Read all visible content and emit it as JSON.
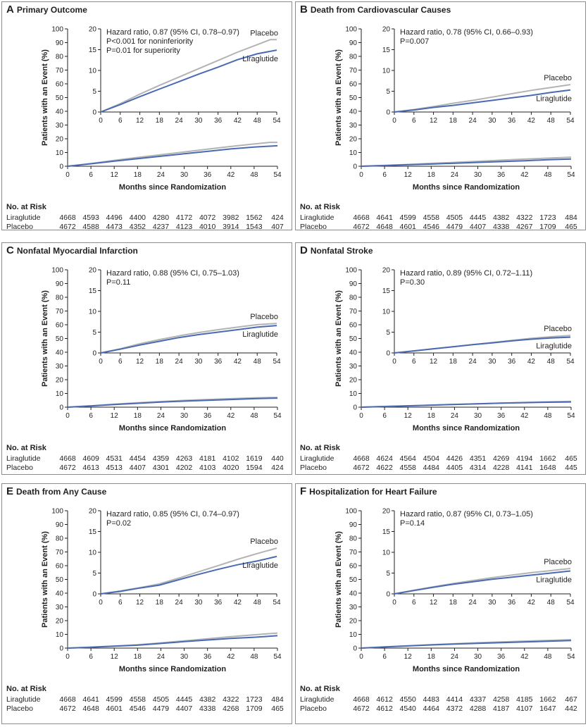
{
  "figure": {
    "panels": [
      {
        "letter": "A",
        "title": "Primary Outcome",
        "hr_lines": [
          "Hazard ratio, 0.87 (95% CI, 0.78–0.97)",
          "P<0.001 for noninferiority",
          "P=0.01 for superiority"
        ],
        "chart_data": {
          "type": "line",
          "title": "Primary Outcome",
          "xlabel": "Months since Randomization",
          "ylabel": "Patients with an Event (%)",
          "xlim": [
            0,
            54
          ],
          "ylim": [
            0,
            100
          ],
          "inset_ylim": [
            0,
            20
          ],
          "xticks": [
            0,
            6,
            12,
            18,
            24,
            30,
            36,
            42,
            48,
            54
          ],
          "yticks": [
            0,
            10,
            20,
            30,
            40,
            50,
            60,
            70,
            80,
            90,
            100
          ],
          "inset_yticks": [
            0,
            5,
            10,
            15,
            20
          ],
          "series": [
            {
              "name": "Placebo",
              "color": "#b3b3b5",
              "x": [
                0,
                6,
                12,
                18,
                24,
                30,
                36,
                42,
                48,
                52,
                54
              ],
              "y": [
                0,
                2.0,
                4.3,
                6.4,
                8.4,
                10.4,
                12.4,
                14.4,
                16.2,
                17.4,
                17.4
              ]
            },
            {
              "name": "Liraglutide",
              "color": "#4a6ab3",
              "x": [
                0,
                6,
                12,
                18,
                24,
                30,
                36,
                42,
                48,
                54
              ],
              "y": [
                0,
                1.8,
                3.7,
                5.5,
                7.3,
                9.1,
                10.8,
                12.6,
                14.0,
                14.9
              ]
            }
          ]
        },
        "risk": {
          "header": "No. at Risk",
          "rows": [
            {
              "label": "Liraglutide",
              "values": [
                "4668",
                "4593",
                "4496",
                "4400",
                "4280",
                "4172",
                "4072",
                "3982",
                "1562",
                "424"
              ]
            },
            {
              "label": "Placebo",
              "values": [
                "4672",
                "4588",
                "4473",
                "4352",
                "4237",
                "4123",
                "4010",
                "3914",
                "1543",
                "407"
              ]
            }
          ]
        }
      },
      {
        "letter": "B",
        "title": "Death from Cardiovascular Causes",
        "hr_lines": [
          "Hazard ratio, 0.78 (95% CI, 0.66–0.93)",
          "P=0.007"
        ],
        "chart_data": {
          "type": "line",
          "title": "Death from Cardiovascular Causes",
          "xlabel": "Months since Randomization",
          "ylabel": "Patients with an Event (%)",
          "xlim": [
            0,
            54
          ],
          "ylim": [
            0,
            100
          ],
          "inset_ylim": [
            0,
            20
          ],
          "xticks": [
            0,
            6,
            12,
            18,
            24,
            30,
            36,
            42,
            48,
            54
          ],
          "yticks": [
            0,
            10,
            20,
            30,
            40,
            50,
            60,
            70,
            80,
            90,
            100
          ],
          "inset_yticks": [
            0,
            5,
            10,
            15,
            20
          ],
          "series": [
            {
              "name": "Placebo",
              "color": "#b3b3b5",
              "x": [
                0,
                6,
                12,
                18,
                24,
                30,
                36,
                42,
                48,
                54
              ],
              "y": [
                0,
                0.6,
                1.3,
                2.1,
                2.8,
                3.6,
                4.4,
                5.2,
                5.9,
                6.6
              ]
            },
            {
              "name": "Liraglutide",
              "color": "#4a6ab3",
              "x": [
                0,
                6,
                12,
                18,
                24,
                30,
                36,
                42,
                48,
                54
              ],
              "y": [
                0,
                0.5,
                1.1,
                1.6,
                2.2,
                2.8,
                3.4,
                4.0,
                4.7,
                5.3
              ]
            }
          ]
        },
        "risk": {
          "header": "No. at Risk",
          "rows": [
            {
              "label": "Liraglutide",
              "values": [
                "4668",
                "4641",
                "4599",
                "4558",
                "4505",
                "4445",
                "4382",
                "4322",
                "1723",
                "484"
              ]
            },
            {
              "label": "Placebo",
              "values": [
                "4672",
                "4648",
                "4601",
                "4546",
                "4479",
                "4407",
                "4338",
                "4267",
                "1709",
                "465"
              ]
            }
          ]
        }
      },
      {
        "letter": "C",
        "title": "Nonfatal Myocardial Infarction",
        "hr_lines": [
          "Hazard ratio, 0.88 (95% CI, 0.75–1.03)",
          "P=0.11"
        ],
        "chart_data": {
          "type": "line",
          "title": "Nonfatal Myocardial Infarction",
          "xlabel": "Months since Randomization",
          "ylabel": "Patients with an Event (%)",
          "xlim": [
            0,
            54
          ],
          "ylim": [
            0,
            100
          ],
          "inset_ylim": [
            0,
            20
          ],
          "xticks": [
            0,
            6,
            12,
            18,
            24,
            30,
            36,
            42,
            48,
            54
          ],
          "yticks": [
            0,
            10,
            20,
            30,
            40,
            50,
            60,
            70,
            80,
            90,
            100
          ],
          "inset_yticks": [
            0,
            5,
            10,
            15,
            20
          ],
          "series": [
            {
              "name": "Placebo",
              "color": "#b3b3b5",
              "x": [
                0,
                6,
                12,
                18,
                24,
                30,
                36,
                42,
                48,
                54
              ],
              "y": [
                0,
                1.0,
                2.2,
                3.2,
                4.1,
                4.9,
                5.6,
                6.2,
                6.8,
                7.1
              ]
            },
            {
              "name": "Liraglutide",
              "color": "#4a6ab3",
              "x": [
                0,
                6,
                12,
                18,
                24,
                30,
                36,
                42,
                48,
                54
              ],
              "y": [
                0,
                0.9,
                1.9,
                2.8,
                3.7,
                4.4,
                5.0,
                5.6,
                6.2,
                6.6
              ]
            }
          ]
        },
        "risk": {
          "header": "No. at Risk",
          "rows": [
            {
              "label": "Liraglutide",
              "values": [
                "4668",
                "4609",
                "4531",
                "4454",
                "4359",
                "4263",
                "4181",
                "4102",
                "1619",
                "440"
              ]
            },
            {
              "label": "Placebo",
              "values": [
                "4672",
                "4613",
                "4513",
                "4407",
                "4301",
                "4202",
                "4103",
                "4020",
                "1594",
                "424"
              ]
            }
          ]
        }
      },
      {
        "letter": "D",
        "title": "Nonfatal Stroke",
        "hr_lines": [
          "Hazard ratio, 0.89 (95% CI, 0.72–1.11)",
          "P=0.30"
        ],
        "chart_data": {
          "type": "line",
          "title": "Nonfatal Stroke",
          "xlabel": "Months since Randomization",
          "ylabel": "Patients with an Event (%)",
          "xlim": [
            0,
            54
          ],
          "ylim": [
            0,
            100
          ],
          "inset_ylim": [
            0,
            20
          ],
          "xticks": [
            0,
            6,
            12,
            18,
            24,
            30,
            36,
            42,
            48,
            54
          ],
          "yticks": [
            0,
            10,
            20,
            30,
            40,
            50,
            60,
            70,
            80,
            90,
            100
          ],
          "inset_yticks": [
            0,
            5,
            10,
            15,
            20
          ],
          "series": [
            {
              "name": "Placebo",
              "color": "#b3b3b5",
              "x": [
                0,
                6,
                12,
                18,
                24,
                30,
                36,
                42,
                48,
                54
              ],
              "y": [
                0,
                0.5,
                1.0,
                1.5,
                2.0,
                2.5,
                3.0,
                3.5,
                3.9,
                4.2
              ]
            },
            {
              "name": "Liraglutide",
              "color": "#4a6ab3",
              "x": [
                0,
                6,
                12,
                18,
                24,
                30,
                36,
                42,
                48,
                54
              ],
              "y": [
                0,
                0.5,
                1.0,
                1.5,
                2.0,
                2.4,
                2.9,
                3.3,
                3.6,
                3.8
              ]
            }
          ]
        },
        "risk": {
          "header": "No. at Risk",
          "rows": [
            {
              "label": "Liraglutide",
              "values": [
                "4668",
                "4624",
                "4564",
                "4504",
                "4426",
                "4351",
                "4269",
                "4194",
                "1662",
                "465"
              ]
            },
            {
              "label": "Placebo",
              "values": [
                "4672",
                "4622",
                "4558",
                "4484",
                "4405",
                "4314",
                "4228",
                "4141",
                "1648",
                "445"
              ]
            }
          ]
        }
      },
      {
        "letter": "E",
        "title": "Death from Any Cause",
        "hr_lines": [
          "Hazard ratio, 0.85 (95% CI, 0.74–0.97)",
          "P=0.02"
        ],
        "chart_data": {
          "type": "line",
          "title": "Death from Any Cause",
          "xlabel": "Months since Randomization",
          "ylabel": "Patients with an Event (%)",
          "xlim": [
            0,
            54
          ],
          "ylim": [
            0,
            100
          ],
          "inset_ylim": [
            0,
            20
          ],
          "xticks": [
            0,
            6,
            12,
            18,
            24,
            30,
            36,
            42,
            48,
            54
          ],
          "yticks": [
            0,
            10,
            20,
            30,
            40,
            50,
            60,
            70,
            80,
            90,
            100
          ],
          "inset_yticks": [
            0,
            5,
            10,
            15,
            20
          ],
          "series": [
            {
              "name": "Placebo",
              "color": "#b3b3b5",
              "x": [
                0,
                6,
                12,
                18,
                24,
                30,
                36,
                42,
                48,
                54
              ],
              "y": [
                0,
                0.7,
                1.5,
                2.4,
                3.8,
                5.3,
                6.8,
                8.3,
                9.7,
                11.0
              ]
            },
            {
              "name": "Liraglutide",
              "color": "#4a6ab3",
              "x": [
                0,
                6,
                12,
                18,
                24,
                30,
                36,
                42,
                48,
                54
              ],
              "y": [
                0,
                0.6,
                1.4,
                2.1,
                3.4,
                4.7,
                5.9,
                7.0,
                7.9,
                9.0
              ]
            }
          ]
        },
        "risk": {
          "header": "No. at Risk",
          "rows": [
            {
              "label": "Liraglutide",
              "values": [
                "4668",
                "4641",
                "4599",
                "4558",
                "4505",
                "4445",
                "4382",
                "4322",
                "1723",
                "484"
              ]
            },
            {
              "label": "Placebo",
              "values": [
                "4672",
                "4648",
                "4601",
                "4546",
                "4479",
                "4407",
                "4338",
                "4268",
                "1709",
                "465"
              ]
            }
          ]
        }
      },
      {
        "letter": "F",
        "title": "Hospitalization for Heart Failure",
        "hr_lines": [
          "Hazard ratio, 0.87 (95% CI, 0.73–1.05)",
          "P=0.14"
        ],
        "chart_data": {
          "type": "line",
          "title": "Hospitalization for Heart Failure",
          "xlabel": "Months since Randomization",
          "ylabel": "Patients with an Event (%)",
          "xlim": [
            0,
            54
          ],
          "ylim": [
            0,
            100
          ],
          "inset_ylim": [
            0,
            20
          ],
          "xticks": [
            0,
            6,
            12,
            18,
            24,
            30,
            36,
            42,
            48,
            54
          ],
          "yticks": [
            0,
            10,
            20,
            30,
            40,
            50,
            60,
            70,
            80,
            90,
            100
          ],
          "inset_yticks": [
            0,
            5,
            10,
            15,
            20
          ],
          "series": [
            {
              "name": "Placebo",
              "color": "#b3b3b5",
              "x": [
                0,
                6,
                12,
                18,
                24,
                30,
                36,
                42,
                48,
                54
              ],
              "y": [
                0,
                0.9,
                1.7,
                2.5,
                3.2,
                3.9,
                4.5,
                5.1,
                5.6,
                6.1
              ]
            },
            {
              "name": "Liraglutide",
              "color": "#4a6ab3",
              "x": [
                0,
                6,
                12,
                18,
                24,
                30,
                36,
                42,
                48,
                54
              ],
              "y": [
                0,
                0.8,
                1.6,
                2.3,
                2.9,
                3.5,
                4.0,
                4.5,
                5.0,
                5.5
              ]
            }
          ]
        },
        "risk": {
          "header": "No. at Risk",
          "rows": [
            {
              "label": "Liraglutide",
              "values": [
                "4668",
                "4612",
                "4550",
                "4483",
                "4414",
                "4337",
                "4258",
                "4185",
                "1662",
                "467"
              ]
            },
            {
              "label": "Placebo",
              "values": [
                "4672",
                "4612",
                "4540",
                "4464",
                "4372",
                "4288",
                "4187",
                "4107",
                "1647",
                "442"
              ]
            }
          ]
        }
      }
    ]
  }
}
